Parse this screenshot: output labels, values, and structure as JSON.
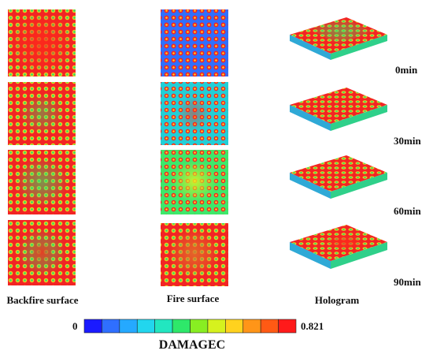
{
  "columns": [
    "Backfire surface",
    "Fire surface",
    "Hologram"
  ],
  "times": [
    "0min",
    "30min",
    "60min",
    "90min"
  ],
  "legend": {
    "min_label": "0",
    "max_label": "0.821",
    "title": "DAMAGEC",
    "colors": [
      "#1a1aff",
      "#2f6fff",
      "#25a9ff",
      "#22d6ee",
      "#22e6c0",
      "#2ee86a",
      "#88ee22",
      "#d6f21e",
      "#ffd21e",
      "#ff9518",
      "#ff5a14",
      "#ff1a1a"
    ]
  }
}
